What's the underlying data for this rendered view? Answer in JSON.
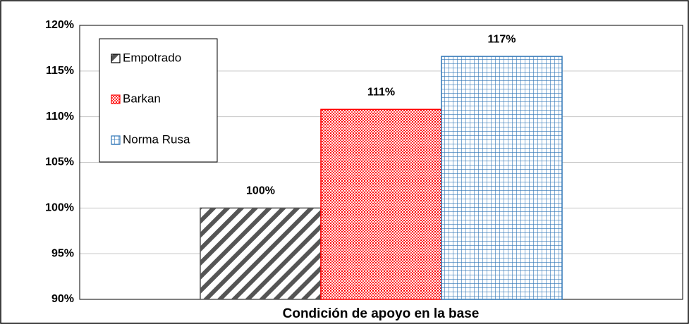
{
  "chart_data": {
    "type": "bar",
    "xlabel": "Condición de apoyo en la base",
    "categories": [
      null
    ],
    "series": [
      {
        "name": "Empotrado",
        "color": "#555555",
        "pattern": "diagonal",
        "values": [
          100
        ],
        "value_labels": [
          "100%"
        ]
      },
      {
        "name": "Barkan",
        "color": "#ff0000",
        "pattern": "dots",
        "values": [
          110.8
        ],
        "value_labels": [
          "111%"
        ]
      },
      {
        "name": "Norma Rusa",
        "color": "#2e75b6",
        "pattern": "grid",
        "values": [
          116.6
        ],
        "value_labels": [
          "117%"
        ]
      }
    ],
    "ylim": [
      90,
      120
    ],
    "yticks": [
      {
        "value": 90,
        "label": "90%"
      },
      {
        "value": 95,
        "label": "95%"
      },
      {
        "value": 100,
        "label": "100%"
      },
      {
        "value": 105,
        "label": "105%"
      },
      {
        "value": 110,
        "label": "110%"
      },
      {
        "value": 115,
        "label": "115%"
      },
      {
        "value": 120,
        "label": "120%"
      }
    ],
    "grid": true,
    "legend": "upper left"
  }
}
